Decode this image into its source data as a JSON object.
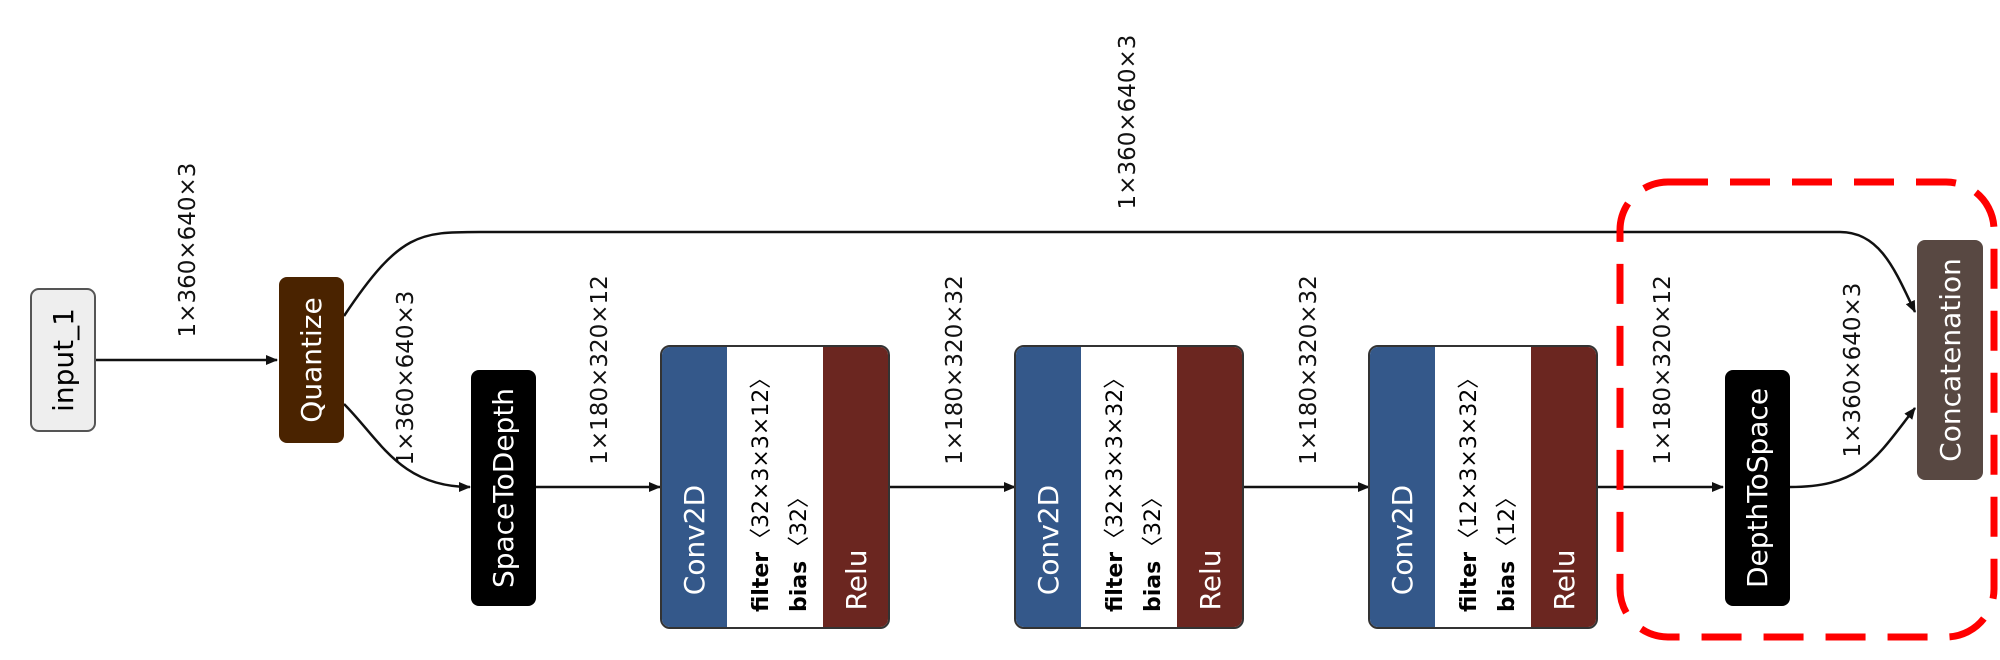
{
  "colors": {
    "input": "#eeeeee",
    "quantize": "#4a2300",
    "space_to_depth": "#000000",
    "depth_to_space": "#000000",
    "conv": "#34588a",
    "relu": "#6b2620",
    "concatenation": "#584842",
    "highlight": "#ff0000"
  },
  "nodes": {
    "input": {
      "label": "input_1"
    },
    "quantize": {
      "label": "Quantize"
    },
    "space_to_depth": {
      "label": "SpaceToDepth"
    },
    "conv_blocks": [
      {
        "op": "Conv2D",
        "filter_key": "filter",
        "filter_val": "〈32×3×3×12〉",
        "bias_key": "bias",
        "bias_val": "〈32〉",
        "activation": "Relu"
      },
      {
        "op": "Conv2D",
        "filter_key": "filter",
        "filter_val": "〈32×3×3×32〉",
        "bias_key": "bias",
        "bias_val": "〈32〉",
        "activation": "Relu"
      },
      {
        "op": "Conv2D",
        "filter_key": "filter",
        "filter_val": "〈12×3×3×32〉",
        "bias_key": "bias",
        "bias_val": "〈12〉",
        "activation": "Relu"
      }
    ],
    "depth_to_space": {
      "label": "DepthToSpace"
    },
    "concatenation": {
      "label": "Concatenation"
    }
  },
  "edges": {
    "input_to_quantize": "1×360×640×3",
    "quantize_to_concat": "1×360×640×3",
    "quantize_to_s2d": "1×360×640×3",
    "s2d_to_conv1": "1×180×320×12",
    "conv1_to_conv2": "1×180×320×32",
    "conv2_to_conv3": "1×180×320×32",
    "conv3_to_d2s": "1×180×320×12",
    "d2s_to_concat": "1×360×640×3"
  }
}
